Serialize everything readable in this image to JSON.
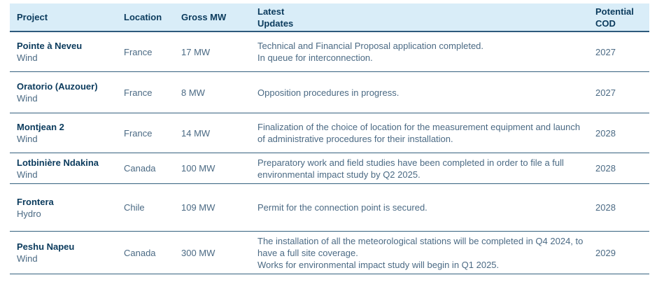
{
  "colors": {
    "header_background": "#d9edf8",
    "header_text": "#0a3a5c",
    "body_text": "#4b6a84",
    "rule_line": "#2e5a7c"
  },
  "table": {
    "columns": [
      {
        "key": "project",
        "label": "Project"
      },
      {
        "key": "location",
        "label": "Location"
      },
      {
        "key": "gross_mw",
        "label": "Gross MW"
      },
      {
        "key": "latest_updates",
        "label": "Latest\nUpdates"
      },
      {
        "key": "potential_cod",
        "label": "Potential\nCOD"
      }
    ],
    "rows": [
      {
        "project": "Pointe à Neveu",
        "type": "Wind",
        "location": "France",
        "gross_mw": "17 MW",
        "latest_updates": [
          "Technical and Financial Proposal application completed.",
          "In queue for interconnection."
        ],
        "potential_cod": "2027"
      },
      {
        "project": "Oratorio (Auzouer)",
        "type": "Wind",
        "location": "France",
        "gross_mw": "8 MW",
        "latest_updates": [
          "Opposition procedures in progress."
        ],
        "potential_cod": "2027"
      },
      {
        "project": "Montjean 2",
        "type": "Wind",
        "location": "France",
        "gross_mw": "14 MW",
        "latest_updates": [
          "Finalization of the choice of location for the measurement equipment and launch of administrative procedures for their installation."
        ],
        "potential_cod": "2028"
      },
      {
        "project": "Lotbinière Ndakina",
        "type": "Wind",
        "location": "Canada",
        "gross_mw": "100 MW",
        "latest_updates": [
          "Preparatory work and field studies have been completed in order to file a full environmental impact study by Q2 2025."
        ],
        "potential_cod": "2028"
      },
      {
        "project": "Frontera",
        "type": "Hydro",
        "location": "Chile",
        "gross_mw": "109 MW",
        "latest_updates": [
          "Permit for the connection point is secured."
        ],
        "potential_cod": "2028"
      },
      {
        "project": "Peshu Napeu",
        "type": "Wind",
        "location": "Canada",
        "gross_mw": "300 MW",
        "latest_updates": [
          "The installation of all the meteorological stations will be completed in Q4 2024, to have a full site coverage.",
          "Works for environmental impact study will begin in Q1 2025."
        ],
        "potential_cod": "2029"
      }
    ]
  }
}
